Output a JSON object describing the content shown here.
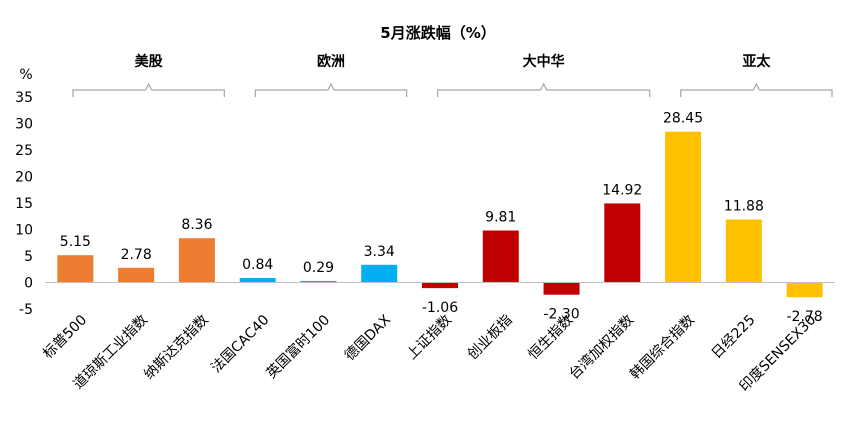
{
  "chart_data": {
    "type": "bar",
    "title": "5月涨跌幅（%）",
    "ylabel": "%",
    "ylim": [
      -5,
      35
    ],
    "yticks": [
      "35",
      "30",
      "25",
      "20",
      "15",
      "10",
      "5",
      "0",
      "-5"
    ],
    "grid": false,
    "legend": "none",
    "categories": [
      "标普500",
      "道琼斯工业指数",
      "纳斯达克指数",
      "法国CAC40",
      "英国富时100",
      "德国DAX",
      "上证指数",
      "创业板指",
      "恒生指数",
      "台湾加权指数",
      "韩国综合指数",
      "日经225",
      "印度SENSEX30"
    ],
    "values": [
      5.15,
      2.78,
      8.36,
      0.84,
      0.29,
      3.34,
      -1.06,
      9.81,
      -2.3,
      14.92,
      28.45,
      11.88,
      -2.78
    ],
    "value_labels": [
      "5.15",
      "2.78",
      "8.36",
      "0.84",
      "0.29",
      "3.34",
      "-1.06",
      "9.81",
      "-2.30",
      "14.92",
      "28.45",
      "11.88",
      "-2.78"
    ],
    "groups": [
      {
        "name": "美股",
        "start": 0,
        "end": 2,
        "color": "#ed7d31"
      },
      {
        "name": "欧洲",
        "start": 3,
        "end": 5,
        "color": "#00b0f0"
      },
      {
        "name": "大中华",
        "start": 6,
        "end": 9,
        "color": "#c00000"
      },
      {
        "name": "亚太",
        "start": 10,
        "end": 12,
        "color": "#ffc000"
      }
    ]
  }
}
